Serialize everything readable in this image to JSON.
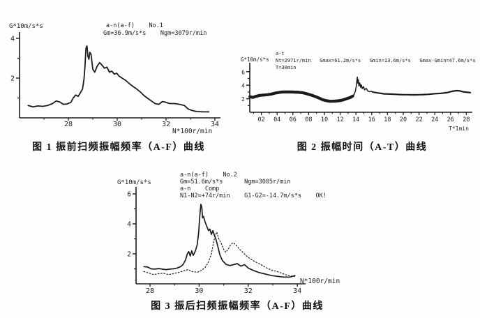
{
  "page": {
    "background": "#fefefe",
    "ink": "#1b1b1b"
  },
  "chart_data": [
    {
      "id": "fig1",
      "type": "line",
      "title": "图 1 振前扫频振幅频率（A-F）曲线",
      "ylabel": "G*10m/s*s",
      "xlabel": "N*100r/min",
      "annotations": [
        "a-n(a-f)    No.1",
        "Gm=36.9m/s*s    Ngm=3079r/min"
      ],
      "xlim": [
        26,
        34.3
      ],
      "ylim": [
        0,
        4.4
      ],
      "grid": false,
      "x_ticks": {
        "major": [
          28,
          30,
          32,
          34
        ],
        "labels": [
          "28",
          "30",
          "32",
          "34"
        ],
        "minor": [
          27,
          29,
          31,
          33
        ]
      },
      "y_ticks": {
        "major": [
          2,
          4
        ],
        "labels": [
          "2",
          "4"
        ],
        "minor": [
          1,
          3
        ]
      },
      "series": [
        {
          "name": "pre-vibration sweep a-f",
          "line": "solid",
          "points": [
            [
              26.35,
              0.62
            ],
            [
              26.55,
              0.55
            ],
            [
              26.75,
              0.6
            ],
            [
              26.95,
              0.58
            ],
            [
              27.15,
              0.62
            ],
            [
              27.35,
              0.72
            ],
            [
              27.5,
              0.85
            ],
            [
              27.65,
              0.8
            ],
            [
              27.8,
              0.68
            ],
            [
              27.95,
              0.7
            ],
            [
              28.1,
              0.78
            ],
            [
              28.2,
              1.0
            ],
            [
              28.3,
              1.15
            ],
            [
              28.4,
              1.08
            ],
            [
              28.5,
              1.28
            ],
            [
              28.58,
              1.45
            ],
            [
              28.64,
              1.95
            ],
            [
              28.68,
              2.6
            ],
            [
              28.72,
              3.5
            ],
            [
              28.76,
              3.62
            ],
            [
              28.8,
              3.1
            ],
            [
              28.84,
              2.95
            ],
            [
              28.88,
              3.3
            ],
            [
              28.93,
              3.2
            ],
            [
              29.0,
              2.45
            ],
            [
              29.08,
              2.3
            ],
            [
              29.18,
              2.6
            ],
            [
              29.28,
              2.78
            ],
            [
              29.38,
              2.65
            ],
            [
              29.48,
              2.5
            ],
            [
              29.58,
              2.55
            ],
            [
              29.68,
              2.3
            ],
            [
              29.78,
              2.35
            ],
            [
              29.88,
              2.2
            ],
            [
              29.98,
              2.25
            ],
            [
              30.08,
              2.1
            ],
            [
              30.2,
              2.0
            ],
            [
              30.35,
              1.88
            ],
            [
              30.5,
              1.72
            ],
            [
              30.65,
              1.58
            ],
            [
              30.8,
              1.45
            ],
            [
              30.95,
              1.3
            ],
            [
              31.1,
              1.12
            ],
            [
              31.25,
              0.98
            ],
            [
              31.4,
              0.85
            ],
            [
              31.55,
              0.72
            ],
            [
              31.7,
              0.68
            ],
            [
              31.85,
              0.82
            ],
            [
              32.0,
              0.78
            ],
            [
              32.15,
              0.72
            ],
            [
              32.35,
              0.72
            ],
            [
              32.55,
              0.68
            ],
            [
              32.75,
              0.62
            ],
            [
              32.9,
              0.45
            ],
            [
              33.05,
              0.38
            ],
            [
              33.25,
              0.32
            ],
            [
              33.5,
              0.3
            ],
            [
              33.75,
              0.3
            ]
          ]
        }
      ]
    },
    {
      "id": "fig2",
      "type": "line",
      "title": "图 2 振幅时间（A-T）曲线",
      "ylabel": "G*10m/s*s",
      "xlabel": "T*1min",
      "annotations": [
        "a-t",
        "Nt=2971r/min   Gmax=61.2m/s*s   Gmin=13.6m/s*s   Gmax-Gmin=47.6m/s*s",
        "T=30min"
      ],
      "xlim": [
        0,
        28.6
      ],
      "ylim": [
        0,
        6.6
      ],
      "grid": false,
      "x_ticks": {
        "major": [
          2,
          4,
          6,
          8,
          10,
          12,
          14,
          16,
          18,
          20,
          22,
          24,
          26,
          28
        ],
        "labels": [
          "02",
          "04",
          "06",
          "08",
          "10",
          "12",
          "14",
          "16",
          "18",
          "20",
          "22",
          "24",
          "26",
          "28"
        ],
        "minor": [
          1,
          3,
          5,
          7,
          9,
          11,
          13,
          15,
          17,
          19,
          21,
          23,
          25,
          27
        ]
      },
      "y_ticks": {
        "major": [
          2,
          4,
          6
        ],
        "labels": [
          "2",
          "4",
          "6"
        ],
        "minor": [
          1,
          3,
          5
        ]
      },
      "series": [
        {
          "name": "amplitude band (0-13.6 min)",
          "line": "solid-thick",
          "points": [
            [
              0.55,
              2.3
            ],
            [
              0.9,
              2.2
            ],
            [
              1.3,
              2.35
            ],
            [
              1.8,
              2.5
            ],
            [
              2.3,
              2.55
            ],
            [
              2.8,
              2.6
            ],
            [
              3.3,
              2.7
            ],
            [
              3.8,
              2.85
            ],
            [
              4.3,
              2.95
            ],
            [
              4.8,
              3.0
            ],
            [
              5.3,
              3.0
            ],
            [
              5.8,
              3.0
            ],
            [
              6.3,
              2.98
            ],
            [
              6.8,
              2.95
            ],
            [
              7.3,
              2.88
            ],
            [
              7.8,
              2.72
            ],
            [
              8.3,
              2.55
            ],
            [
              8.8,
              2.35
            ],
            [
              9.3,
              2.1
            ],
            [
              9.8,
              1.85
            ],
            [
              10.3,
              1.7
            ],
            [
              10.8,
              1.62
            ],
            [
              11.3,
              1.65
            ],
            [
              11.8,
              1.7
            ],
            [
              12.3,
              1.8
            ],
            [
              12.8,
              2.0
            ],
            [
              13.3,
              2.2
            ],
            [
              13.6,
              2.4
            ]
          ]
        },
        {
          "name": "resonance spike (13.6-16 min)",
          "line": "solid-thin",
          "points": [
            [
              13.6,
              2.4
            ],
            [
              13.8,
              2.7
            ],
            [
              13.95,
              3.2
            ],
            [
              14.05,
              4.0
            ],
            [
              14.12,
              4.7
            ],
            [
              14.18,
              5.2
            ],
            [
              14.24,
              4.3
            ],
            [
              14.3,
              4.8
            ],
            [
              14.38,
              3.9
            ],
            [
              14.48,
              4.35
            ],
            [
              14.58,
              3.7
            ],
            [
              14.68,
              4.05
            ],
            [
              14.8,
              3.5
            ],
            [
              14.95,
              3.8
            ],
            [
              15.1,
              3.3
            ],
            [
              15.3,
              3.55
            ],
            [
              15.5,
              3.15
            ],
            [
              15.7,
              3.05
            ],
            [
              15.95,
              3.1
            ],
            [
              16.1,
              3.0
            ]
          ]
        },
        {
          "name": "amplitude band (16-28.5 min)",
          "line": "solid-medium",
          "points": [
            [
              16.1,
              3.0
            ],
            [
              16.6,
              2.9
            ],
            [
              17.1,
              2.8
            ],
            [
              17.6,
              2.72
            ],
            [
              18.1,
              2.7
            ],
            [
              18.6,
              2.68
            ],
            [
              19.1,
              2.65
            ],
            [
              19.6,
              2.62
            ],
            [
              20.1,
              2.6
            ],
            [
              20.6,
              2.6
            ],
            [
              21.1,
              2.58
            ],
            [
              21.6,
              2.58
            ],
            [
              22.1,
              2.6
            ],
            [
              22.6,
              2.62
            ],
            [
              23.1,
              2.65
            ],
            [
              23.6,
              2.7
            ],
            [
              24.1,
              2.75
            ],
            [
              24.8,
              2.8
            ],
            [
              25.5,
              2.9
            ],
            [
              26.2,
              3.1
            ],
            [
              26.8,
              3.2
            ],
            [
              27.2,
              3.15
            ],
            [
              27.7,
              3.0
            ],
            [
              28.2,
              2.95
            ],
            [
              28.5,
              2.9
            ]
          ]
        }
      ]
    },
    {
      "id": "fig3",
      "type": "line",
      "title": "图 3 振后扫频振幅频率（A-F）曲线",
      "ylabel": "G*10m/s*s",
      "xlabel": "N*100r/min",
      "annotations": [
        "a-n(a-f)    No.2",
        "Gm=51.6m/s*s      Ngm=3005r/min",
        "a-n    Comp",
        "N1-N2=+74r/min    G1-G2=-14.7m/s*s    OK!"
      ],
      "xlim": [
        27.5,
        34.2
      ],
      "ylim": [
        0,
        6.5
      ],
      "grid": false,
      "x_ticks": {
        "major": [
          28,
          30,
          32,
          34
        ],
        "labels": [
          "28",
          "30",
          "32",
          "34"
        ],
        "minor": [
          29,
          31,
          33
        ]
      },
      "y_ticks": {
        "major": [
          2,
          4,
          6
        ],
        "labels": [
          "2",
          "4",
          "6"
        ],
        "minor": [
          1,
          3,
          5
        ]
      },
      "series": [
        {
          "name": "post-vibration sweep No.2",
          "line": "solid",
          "points": [
            [
              27.75,
              1.15
            ],
            [
              27.9,
              1.12
            ],
            [
              28.05,
              1.0
            ],
            [
              28.2,
              0.98
            ],
            [
              28.35,
              1.02
            ],
            [
              28.5,
              0.98
            ],
            [
              28.65,
              0.95
            ],
            [
              28.8,
              0.98
            ],
            [
              28.95,
              1.0
            ],
            [
              29.1,
              1.05
            ],
            [
              29.25,
              1.15
            ],
            [
              29.35,
              1.3
            ],
            [
              29.45,
              1.6
            ],
            [
              29.52,
              2.0
            ],
            [
              29.58,
              2.15
            ],
            [
              29.64,
              1.85
            ],
            [
              29.7,
              2.2
            ],
            [
              29.76,
              1.9
            ],
            [
              29.85,
              2.2
            ],
            [
              29.92,
              2.6
            ],
            [
              29.98,
              3.4
            ],
            [
              30.03,
              4.6
            ],
            [
              30.07,
              5.3
            ],
            [
              30.11,
              5.1
            ],
            [
              30.14,
              4.4
            ],
            [
              30.18,
              4.5
            ],
            [
              30.25,
              4.1
            ],
            [
              30.32,
              3.8
            ],
            [
              30.38,
              3.55
            ],
            [
              30.44,
              3.65
            ],
            [
              30.5,
              3.3
            ],
            [
              30.56,
              3.55
            ],
            [
              30.62,
              3.25
            ],
            [
              30.68,
              3.0
            ],
            [
              30.76,
              2.5
            ],
            [
              30.84,
              1.95
            ],
            [
              30.95,
              1.55
            ],
            [
              31.1,
              1.3
            ],
            [
              31.25,
              1.22
            ],
            [
              31.4,
              1.28
            ],
            [
              31.55,
              1.35
            ],
            [
              31.7,
              1.18
            ],
            [
              31.85,
              1.28
            ],
            [
              32.0,
              1.05
            ],
            [
              32.2,
              0.9
            ],
            [
              32.45,
              0.75
            ],
            [
              32.7,
              0.65
            ],
            [
              32.95,
              0.55
            ],
            [
              33.2,
              0.5
            ],
            [
              33.45,
              0.45
            ],
            [
              33.7,
              0.45
            ],
            [
              33.9,
              0.55
            ]
          ]
        },
        {
          "name": "comparison sweep No.1",
          "line": "dotted",
          "points": [
            [
              27.75,
              0.82
            ],
            [
              27.95,
              0.72
            ],
            [
              28.15,
              0.62
            ],
            [
              28.35,
              0.68
            ],
            [
              28.55,
              0.7
            ],
            [
              28.75,
              0.62
            ],
            [
              28.95,
              0.68
            ],
            [
              29.15,
              0.75
            ],
            [
              29.35,
              0.85
            ],
            [
              29.55,
              0.95
            ],
            [
              29.75,
              0.8
            ],
            [
              29.95,
              0.78
            ],
            [
              30.1,
              0.9
            ],
            [
              30.25,
              1.1
            ],
            [
              30.38,
              1.45
            ],
            [
              30.5,
              2.0
            ],
            [
              30.58,
              2.7
            ],
            [
              30.65,
              3.2
            ],
            [
              30.72,
              3.45
            ],
            [
              30.8,
              3.0
            ],
            [
              30.9,
              2.7
            ],
            [
              31.0,
              2.3
            ],
            [
              31.08,
              2.1
            ],
            [
              31.18,
              2.3
            ],
            [
              31.28,
              2.6
            ],
            [
              31.38,
              2.75
            ],
            [
              31.5,
              2.6
            ],
            [
              31.62,
              2.35
            ],
            [
              31.75,
              2.15
            ],
            [
              31.9,
              1.9
            ],
            [
              32.05,
              1.7
            ],
            [
              32.2,
              1.55
            ],
            [
              32.35,
              1.42
            ],
            [
              32.5,
              1.3
            ],
            [
              32.65,
              1.15
            ],
            [
              32.8,
              1.02
            ],
            [
              32.95,
              0.92
            ],
            [
              33.1,
              0.85
            ],
            [
              33.3,
              0.75
            ],
            [
              33.5,
              0.62
            ],
            [
              33.7,
              0.52
            ],
            [
              33.9,
              0.5
            ]
          ]
        }
      ]
    }
  ]
}
